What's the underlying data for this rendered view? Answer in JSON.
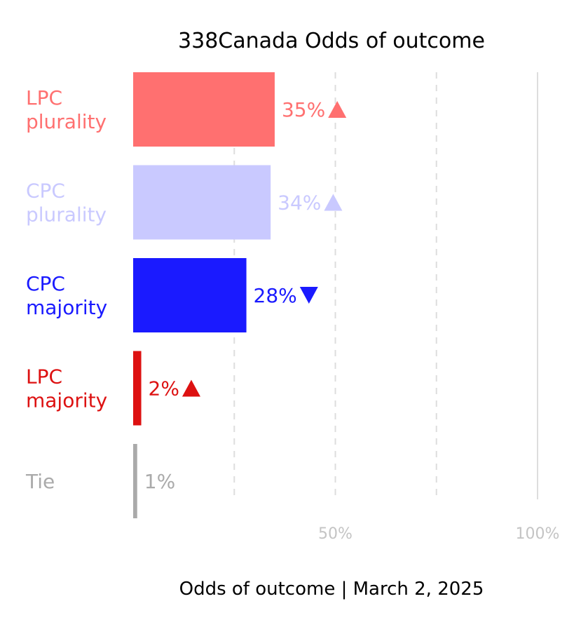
{
  "chart_data": {
    "type": "bar",
    "orientation": "horizontal",
    "title": "338Canada Odds of outcome",
    "xlabel": "Odds of outcome | March 2, 2025",
    "ylabel": "",
    "xlim": [
      0,
      100
    ],
    "x_ticks": [
      {
        "value": 50,
        "label": "50%"
      },
      {
        "value": 100,
        "label": "100%"
      }
    ],
    "grid": true,
    "categories": [
      "LPC plurality",
      "CPC plurality",
      "CPC majority",
      "LPC majority",
      "Tie"
    ],
    "category_label_lines": [
      [
        "LPC",
        "plurality"
      ],
      [
        "CPC",
        "plurality"
      ],
      [
        "CPC",
        "majority"
      ],
      [
        "LPC",
        "majority"
      ],
      [
        "Tie"
      ]
    ],
    "values": [
      35,
      34,
      28,
      2,
      1
    ],
    "value_labels": [
      "35%",
      "34%",
      "28%",
      "2%",
      "1%"
    ],
    "trend": [
      "up",
      "up",
      "down",
      "up",
      ""
    ],
    "colors": [
      "#ff7070",
      "#c9c9ff",
      "#1a1aff",
      "#dd1111",
      "#aaaaaa"
    ]
  }
}
